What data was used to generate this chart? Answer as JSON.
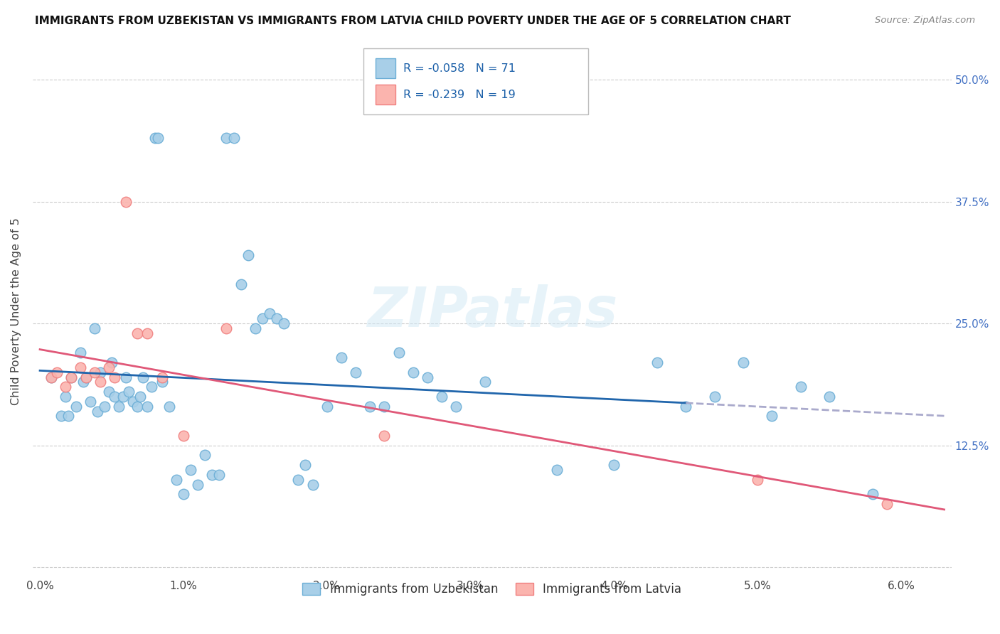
{
  "title": "IMMIGRANTS FROM UZBEKISTAN VS IMMIGRANTS FROM LATVIA CHILD POVERTY UNDER THE AGE OF 5 CORRELATION CHART",
  "source": "Source: ZipAtlas.com",
  "ylabel": "Child Poverty Under the Age of 5",
  "x_tick_vals": [
    0.0,
    0.01,
    0.02,
    0.03,
    0.04,
    0.05,
    0.06
  ],
  "x_tick_labels": [
    "0.0%",
    "1.0%",
    "2.0%",
    "3.0%",
    "4.0%",
    "5.0%",
    "6.0%"
  ],
  "y_ticks": [
    0.0,
    0.125,
    0.25,
    0.375,
    0.5
  ],
  "y_tick_labels": [
    "",
    "12.5%",
    "25.0%",
    "37.5%",
    "50.0%"
  ],
  "xlim": [
    -0.0005,
    0.0635
  ],
  "ylim": [
    -0.01,
    0.535
  ],
  "watermark": "ZIPatlas",
  "legend_r1": "-0.058",
  "legend_n1": "71",
  "legend_r2": "-0.239",
  "legend_n2": "19",
  "color_uzbekistan_fill": "#a8cfe8",
  "color_uzbekistan_edge": "#6baed6",
  "color_latvia_fill": "#fbb4ae",
  "color_latvia_edge": "#f08080",
  "trend_color_uzbekistan": "#2166ac",
  "trend_color_latvia": "#e05878",
  "trend_dashed_color": "#aaaacc",
  "uzbekistan_x": [
    0.0008,
    0.0015,
    0.0018,
    0.002,
    0.0022,
    0.0025,
    0.0028,
    0.003,
    0.0032,
    0.0035,
    0.0038,
    0.004,
    0.0042,
    0.0045,
    0.0048,
    0.005,
    0.0052,
    0.0055,
    0.0058,
    0.006,
    0.0062,
    0.0065,
    0.0068,
    0.007,
    0.0072,
    0.0075,
    0.0078,
    0.008,
    0.0082,
    0.0085,
    0.009,
    0.0095,
    0.01,
    0.0105,
    0.011,
    0.0115,
    0.012,
    0.0125,
    0.013,
    0.0135,
    0.014,
    0.0145,
    0.015,
    0.0155,
    0.016,
    0.0165,
    0.017,
    0.018,
    0.0185,
    0.019,
    0.02,
    0.021,
    0.022,
    0.023,
    0.024,
    0.025,
    0.026,
    0.027,
    0.028,
    0.029,
    0.031,
    0.036,
    0.04,
    0.043,
    0.045,
    0.047,
    0.049,
    0.051,
    0.053,
    0.055,
    0.058
  ],
  "uzbekistan_y": [
    0.195,
    0.155,
    0.175,
    0.155,
    0.195,
    0.165,
    0.22,
    0.19,
    0.195,
    0.17,
    0.245,
    0.16,
    0.2,
    0.165,
    0.18,
    0.21,
    0.175,
    0.165,
    0.175,
    0.195,
    0.18,
    0.17,
    0.165,
    0.175,
    0.195,
    0.165,
    0.185,
    0.44,
    0.44,
    0.19,
    0.165,
    0.09,
    0.075,
    0.1,
    0.085,
    0.115,
    0.095,
    0.095,
    0.44,
    0.44,
    0.29,
    0.32,
    0.245,
    0.255,
    0.26,
    0.255,
    0.25,
    0.09,
    0.105,
    0.085,
    0.165,
    0.215,
    0.2,
    0.165,
    0.165,
    0.22,
    0.2,
    0.195,
    0.175,
    0.165,
    0.19,
    0.1,
    0.105,
    0.21,
    0.165,
    0.175,
    0.21,
    0.155,
    0.185,
    0.175,
    0.075
  ],
  "latvia_x": [
    0.0008,
    0.0012,
    0.0018,
    0.0022,
    0.0028,
    0.0032,
    0.0038,
    0.0042,
    0.0048,
    0.0052,
    0.006,
    0.0068,
    0.0075,
    0.0085,
    0.01,
    0.013,
    0.024,
    0.05,
    0.059
  ],
  "latvia_y": [
    0.195,
    0.2,
    0.185,
    0.195,
    0.205,
    0.195,
    0.2,
    0.19,
    0.205,
    0.195,
    0.375,
    0.24,
    0.24,
    0.195,
    0.135,
    0.245,
    0.135,
    0.09,
    0.065
  ]
}
